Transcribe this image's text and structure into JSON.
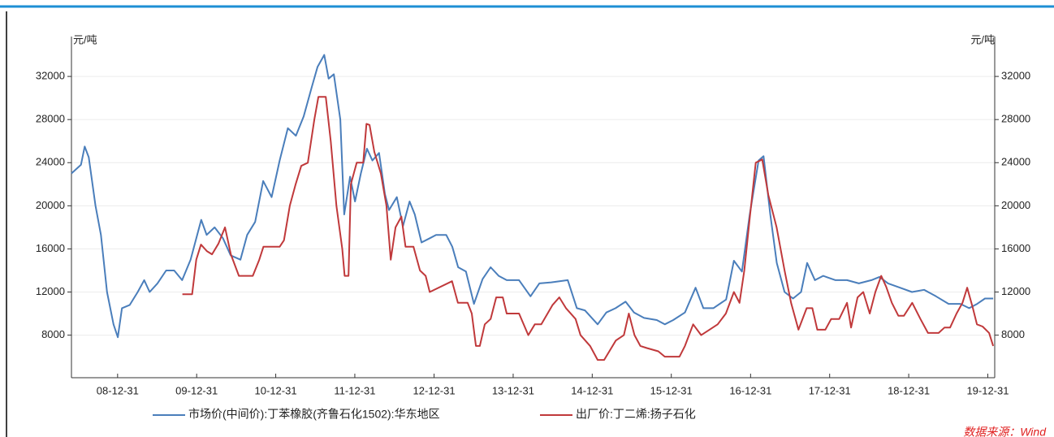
{
  "chart_data": {
    "type": "line",
    "y_label": "元/吨",
    "y2_label": "元/吨",
    "xlim": [
      "08-06-01",
      "20-02-01"
    ],
    "xticks": [
      "08-12-31",
      "09-12-31",
      "10-12-31",
      "11-12-31",
      "12-12-31",
      "13-12-31",
      "14-12-31",
      "15-12-31",
      "16-12-31",
      "17-12-31",
      "18-12-31",
      "19-12-31"
    ],
    "ylim": [
      4050,
      35700
    ],
    "yticks": [
      8000,
      12000,
      16000,
      20000,
      24000,
      28000,
      32000
    ],
    "y2lim": [
      4050,
      35700
    ],
    "y2ticks": [
      8000,
      12000,
      16000,
      20000,
      24000,
      28000,
      32000
    ],
    "grid": true,
    "source": "数据来源：Wind",
    "series": [
      {
        "name": "市场价(中间价):丁苯橡胶(齐鲁石化1502):华东地区",
        "color": "#4a7ebb",
        "x": [
          "08-06-01",
          "08-07-15",
          "08-08-01",
          "08-08-20",
          "08-09-20",
          "08-10-15",
          "08-11-12",
          "08-12-12",
          "09-01-01",
          "09-01-20",
          "09-02-25",
          "09-04-03",
          "09-05-03",
          "09-05-28",
          "09-07-03",
          "09-08-12",
          "09-09-18",
          "09-10-25",
          "09-12-03",
          "10-01-21",
          "10-02-15",
          "10-03-24",
          "10-05-01",
          "10-06-06",
          "10-07-21",
          "10-08-21",
          "10-09-27",
          "10-11-03",
          "10-12-12",
          "11-01-18",
          "11-02-25",
          "11-04-03",
          "11-05-09",
          "11-06-15",
          "11-07-12",
          "11-08-12",
          "11-09-01",
          "11-09-25",
          "11-10-25",
          "11-11-12",
          "11-12-09",
          "12-01-01",
          "12-01-28",
          "12-02-25",
          "12-03-21",
          "12-04-21",
          "12-05-18",
          "12-06-06",
          "12-07-12",
          "12-08-09",
          "12-09-09",
          "12-10-03",
          "12-11-03",
          "12-12-12",
          "13-01-09",
          "13-02-25",
          "13-03-25",
          "13-04-21",
          "13-05-27",
          "13-07-03",
          "13-08-12",
          "13-09-18",
          "13-10-25",
          "13-12-01",
          "14-01-27",
          "14-03-21",
          "14-05-01",
          "14-06-25",
          "14-09-09",
          "14-10-21",
          "14-11-27",
          "15-01-25",
          "15-03-06",
          "15-04-18",
          "15-06-03",
          "15-07-12",
          "15-08-27",
          "15-10-25",
          "15-12-01",
          "16-01-09",
          "16-03-03",
          "16-04-21",
          "16-05-27",
          "16-07-12",
          "16-09-09",
          "16-10-15",
          "16-11-21",
          "16-12-27",
          "17-02-06",
          "17-03-01",
          "17-04-01",
          "17-05-01",
          "17-06-06",
          "17-07-15",
          "17-08-21",
          "17-09-18",
          "17-10-24",
          "17-12-01",
          "18-01-27",
          "18-03-21",
          "18-05-15",
          "18-07-12",
          "18-08-18",
          "18-09-27",
          "18-11-21",
          "19-01-15",
          "19-03-12",
          "19-05-06",
          "19-07-03",
          "19-08-27",
          "19-10-06",
          "19-11-12",
          "19-12-18",
          "20-01-25"
        ],
        "values": [
          23000,
          23800,
          25500,
          24500,
          20000,
          17300,
          12000,
          9000,
          7800,
          10500,
          10800,
          12000,
          13100,
          12000,
          12800,
          14000,
          14000,
          13100,
          15000,
          18700,
          17300,
          18000,
          17000,
          15400,
          15000,
          17300,
          18500,
          22300,
          20800,
          24200,
          27200,
          26500,
          28300,
          31000,
          32900,
          34000,
          31800,
          32200,
          28000,
          19200,
          22700,
          20400,
          23000,
          25300,
          24200,
          24900,
          21100,
          19600,
          20800,
          18100,
          20400,
          19200,
          16600,
          17000,
          17300,
          17300,
          16200,
          14300,
          13900,
          10900,
          13200,
          14300,
          13500,
          13100,
          13100,
          11600,
          12800,
          12900,
          13100,
          10500,
          10300,
          9000,
          10100,
          10500,
          11100,
          10100,
          9600,
          9400,
          9000,
          9400,
          10100,
          12400,
          10500,
          10500,
          11300,
          14900,
          13900,
          19200,
          24200,
          24600,
          19200,
          14700,
          12000,
          11400,
          12000,
          14700,
          13100,
          13500,
          13100,
          13100,
          12800,
          13100,
          13400,
          12800,
          12400,
          12000,
          12200,
          11600,
          10900,
          10900,
          10500,
          10900,
          11400,
          11400
        ]
      },
      {
        "name": "出厂价:丁二烯:扬子石化",
        "color": "#c0393b",
        "axis": "y2",
        "x": [
          "09-10-26",
          "09-12-10",
          "09-12-29",
          "10-01-20",
          "10-02-16",
          "10-03-12",
          "10-04-11",
          "10-05-11",
          "10-06-07",
          "10-07-14",
          "10-09-16",
          "10-10-16",
          "10-11-04",
          "11-01-18",
          "11-02-07",
          "11-03-06",
          "11-04-02",
          "11-04-28",
          "11-05-28",
          "11-06-27",
          "11-07-16",
          "11-08-19",
          "11-09-11",
          "11-10-07",
          "11-11-03",
          "11-11-14",
          "11-12-02",
          "11-12-13",
          "12-01-09",
          "12-02-08",
          "12-02-23",
          "12-03-08",
          "12-03-30",
          "12-04-29",
          "12-05-25",
          "12-06-14",
          "12-07-06",
          "12-08-02",
          "12-08-21",
          "12-09-27",
          "12-10-27",
          "12-11-22",
          "12-12-11",
          "13-03-24",
          "13-04-20",
          "13-06-04",
          "13-06-23",
          "13-07-12",
          "13-07-30",
          "13-08-22",
          "13-09-18",
          "13-10-14",
          "13-11-13",
          "13-12-01",
          "14-01-27",
          "14-03-11",
          "14-04-10",
          "14-05-10",
          "14-07-01",
          "14-08-01",
          "14-09-01",
          "14-10-15",
          "14-11-07",
          "14-12-21",
          "15-01-25",
          "15-02-24",
          "15-03-20",
          "15-04-19",
          "15-05-26",
          "15-06-18",
          "15-07-14",
          "15-08-10",
          "15-09-09",
          "15-11-01",
          "15-12-01",
          "16-02-07",
          "16-03-03",
          "16-04-10",
          "16-05-17",
          "16-06-24",
          "16-08-01",
          "16-09-08",
          "16-10-15",
          "16-11-10",
          "16-12-02",
          "16-12-28",
          "17-01-24",
          "17-02-23",
          "17-03-23",
          "17-04-30",
          "17-06-06",
          "17-07-06",
          "17-08-09",
          "17-09-16",
          "17-10-12",
          "17-11-04",
          "17-12-11",
          "18-01-07",
          "18-02-13",
          "18-03-21",
          "18-04-09",
          "18-05-09",
          "18-06-04",
          "18-07-04",
          "18-07-30",
          "18-08-26",
          "18-09-18",
          "18-10-14",
          "18-11-13",
          "18-12-09",
          "19-01-16",
          "19-02-23",
          "19-03-30",
          "19-05-18",
          "19-06-14",
          "19-07-10",
          "19-08-09",
          "19-09-05",
          "19-09-27",
          "19-10-23",
          "19-11-11",
          "19-12-07",
          "20-01-06",
          "20-01-25"
        ],
        "values": [
          11800,
          11800,
          15000,
          16400,
          15800,
          15500,
          16500,
          18000,
          15500,
          13500,
          13500,
          15000,
          16200,
          16200,
          16800,
          20000,
          22000,
          23700,
          24000,
          28000,
          30100,
          30100,
          26000,
          20000,
          16000,
          13500,
          13500,
          22000,
          24000,
          24000,
          27600,
          27500,
          25000,
          23000,
          20000,
          15000,
          18000,
          19000,
          16200,
          16200,
          14000,
          13500,
          12000,
          13000,
          11000,
          11000,
          10000,
          7000,
          7000,
          9000,
          9500,
          11500,
          11500,
          10000,
          10000,
          8000,
          9000,
          9000,
          10800,
          11500,
          10500,
          9500,
          8000,
          7000,
          5700,
          5700,
          6500,
          7500,
          8000,
          10000,
          8000,
          7000,
          6800,
          6500,
          6000,
          6000,
          7000,
          9000,
          8000,
          8500,
          9000,
          10000,
          12000,
          11000,
          14000,
          19000,
          24000,
          24300,
          21000,
          18000,
          14000,
          11000,
          8500,
          10500,
          10500,
          8500,
          8500,
          9500,
          9500,
          11000,
          8700,
          11500,
          12000,
          10000,
          12000,
          13500,
          12500,
          11000,
          9800,
          9800,
          11000,
          9500,
          8200,
          8200,
          8700,
          8700,
          10000,
          11000,
          12400,
          10500,
          9000,
          8800,
          8200,
          7000
        ]
      }
    ]
  }
}
